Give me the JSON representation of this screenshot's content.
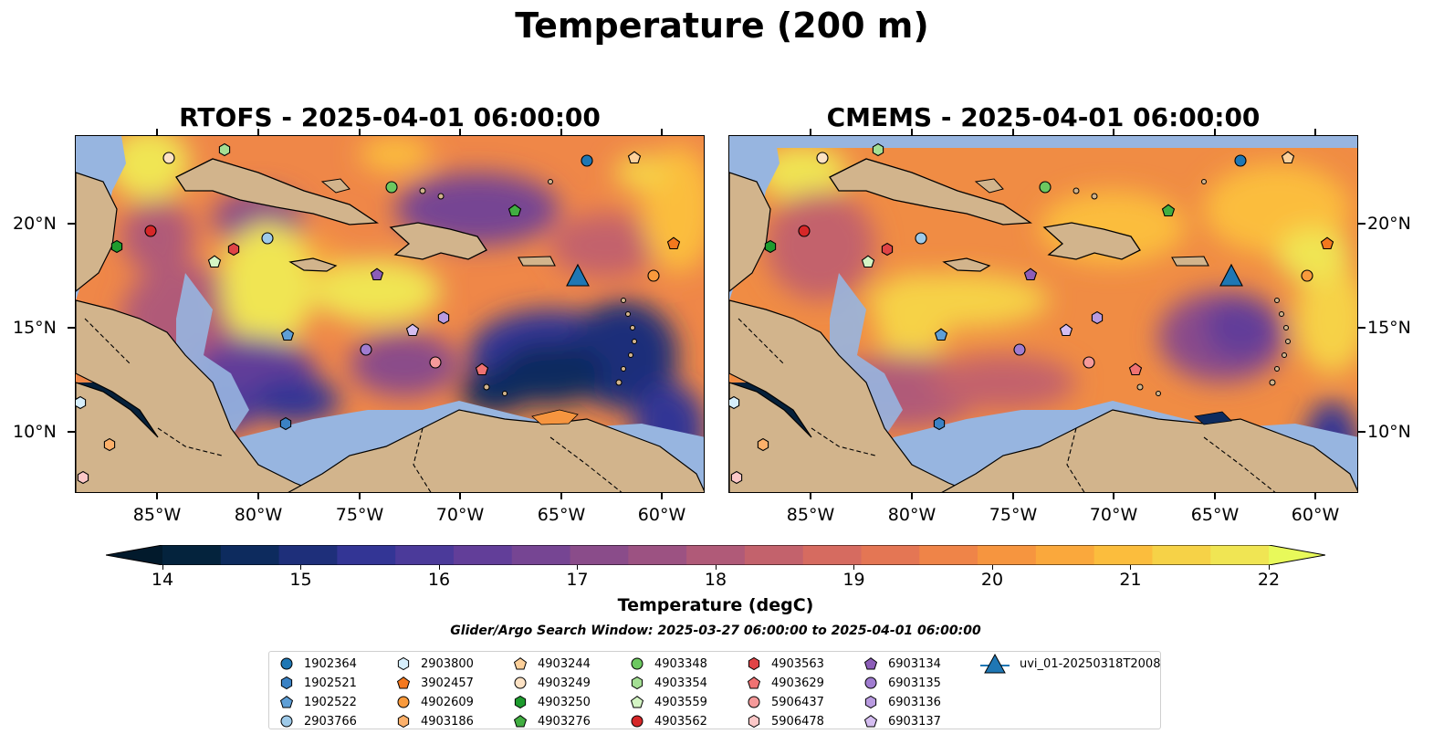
{
  "title": "Temperature (200 m)",
  "panels": [
    {
      "title": "RTOFS - 2025-04-01 06:00:00"
    },
    {
      "title": "CMEMS - 2025-04-01 06:00:00"
    }
  ],
  "axes": {
    "lon_labels": [
      "85°W",
      "80°W",
      "75°W",
      "70°W",
      "65°W",
      "60°W"
    ],
    "lat_labels": [
      "20°N",
      "15°N",
      "10°N"
    ]
  },
  "colorbar": {
    "label": "Temperature (degC)",
    "ticks": [
      "14",
      "15",
      "16",
      "17",
      "18",
      "19",
      "20",
      "21",
      "22"
    ],
    "range": [
      14,
      22
    ],
    "colors": [
      "#04233d",
      "#0d2b5e",
      "#1e2f7a",
      "#333595",
      "#4b3a9a",
      "#623e99",
      "#764593",
      "#8a4c8a",
      "#9c5282",
      "#b05a78",
      "#c3626c",
      "#d66b60",
      "#e47654",
      "#ef8448",
      "#f6953f",
      "#faa83c",
      "#fbbd3d",
      "#f6d247",
      "#f0e553"
    ],
    "under_color": "#021a2c",
    "over_color": "#e8f95a"
  },
  "search_window": "Glider/Argo Search Window: 2025-03-27 06:00:00 to 2025-04-01 06:00:00",
  "colors": {
    "land": "#d2b48c",
    "ocean_shelf": "#97b5e0",
    "pacific_deep": "#05203a",
    "coastline": "#000000"
  },
  "legend": [
    {
      "label": "1902364",
      "marker": "circle",
      "color": "#1f77b4"
    },
    {
      "label": "1902521",
      "marker": "hexagon",
      "color": "#3b82c4"
    },
    {
      "label": "1902522",
      "marker": "pentagon",
      "color": "#5f9fd6"
    },
    {
      "label": "2903766",
      "marker": "circle",
      "color": "#9ecae9"
    },
    {
      "label": "2903800",
      "marker": "hexagon",
      "color": "#d6eefb"
    },
    {
      "label": "3902457",
      "marker": "pentagon",
      "color": "#f4781e"
    },
    {
      "label": "4902609",
      "marker": "circle",
      "color": "#f99a3c"
    },
    {
      "label": "4903186",
      "marker": "hexagon",
      "color": "#fcb06a"
    },
    {
      "label": "4903244",
      "marker": "pentagon",
      "color": "#fdd09a"
    },
    {
      "label": "4903249",
      "marker": "circle",
      "color": "#fde2c4"
    },
    {
      "label": "4903250",
      "marker": "hexagon",
      "color": "#1e9b2e"
    },
    {
      "label": "4903276",
      "marker": "pentagon",
      "color": "#41ae41"
    },
    {
      "label": "4903348",
      "marker": "circle",
      "color": "#6cc860"
    },
    {
      "label": "4903354",
      "marker": "hexagon",
      "color": "#a4df94"
    },
    {
      "label": "4903559",
      "marker": "pentagon",
      "color": "#d4f5c4"
    },
    {
      "label": "4903562",
      "marker": "circle",
      "color": "#d62728"
    },
    {
      "label": "4903563",
      "marker": "hexagon",
      "color": "#e04446"
    },
    {
      "label": "4903629",
      "marker": "pentagon",
      "color": "#f07272"
    },
    {
      "label": "5906437",
      "marker": "circle",
      "color": "#f59a9a"
    },
    {
      "label": "5906478",
      "marker": "hexagon",
      "color": "#fcc8c8"
    },
    {
      "label": "6903134",
      "marker": "pentagon",
      "color": "#8c5db8"
    },
    {
      "label": "6903135",
      "marker": "circle",
      "color": "#a07cd0"
    },
    {
      "label": "6903136",
      "marker": "hexagon",
      "color": "#b99be0"
    },
    {
      "label": "6903137",
      "marker": "pentagon",
      "color": "#d4bdf0"
    },
    {
      "label": "uvi_01-20250318T2008",
      "marker": "triangle",
      "color": "#1f77b4"
    }
  ]
}
